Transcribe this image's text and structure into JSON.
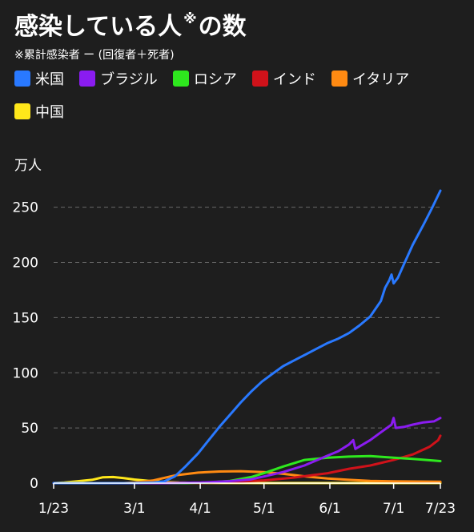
{
  "title": "感染している人",
  "title_mark": "※",
  "title_suffix": "の数",
  "subtitle": "※累計感染者 ー (回復者＋死者)",
  "y_unit": "万人",
  "legend": [
    {
      "name": "米国",
      "color": "#2979ff"
    },
    {
      "name": "ブラジル",
      "color": "#8a1cf0"
    },
    {
      "name": "ロシア",
      "color": "#2ee81e"
    },
    {
      "name": "インド",
      "color": "#d0121a"
    },
    {
      "name": "イタリア",
      "color": "#ff8a12"
    },
    {
      "name": "中国",
      "color": "#ffe71a"
    }
  ],
  "chart_data": {
    "type": "line",
    "ylabel": "万人",
    "ylim": [
      0,
      265
    ],
    "yticks": [
      0,
      50,
      100,
      150,
      200,
      250
    ],
    "xlim": [
      "2020-01-23",
      "2020-07-23"
    ],
    "xticks": [
      {
        "label": "1/23",
        "date": "2020-01-23"
      },
      {
        "label": "3/1",
        "date": "2020-03-01"
      },
      {
        "label": "4/1",
        "date": "2020-04-01"
      },
      {
        "label": "5/1",
        "date": "2020-05-01"
      },
      {
        "label": "6/1",
        "date": "2020-06-01"
      },
      {
        "label": "7/1",
        "date": "2020-07-01"
      },
      {
        "label": "7/23",
        "date": "2020-07-23"
      }
    ],
    "grid": "horizontal-dashed",
    "series": [
      {
        "name": "米国",
        "color": "#2979ff",
        "points": [
          [
            "2020-01-23",
            0
          ],
          [
            "2020-03-01",
            0.1
          ],
          [
            "2020-03-10",
            0.5
          ],
          [
            "2020-03-15",
            1.5
          ],
          [
            "2020-03-20",
            6
          ],
          [
            "2020-03-25",
            15
          ],
          [
            "2020-03-31",
            27
          ],
          [
            "2020-04-05",
            39
          ],
          [
            "2020-04-10",
            51
          ],
          [
            "2020-04-15",
            62
          ],
          [
            "2020-04-20",
            73
          ],
          [
            "2020-04-25",
            83
          ],
          [
            "2020-04-30",
            92
          ],
          [
            "2020-05-05",
            99
          ],
          [
            "2020-05-10",
            106
          ],
          [
            "2020-05-15",
            111
          ],
          [
            "2020-05-20",
            116
          ],
          [
            "2020-05-25",
            121
          ],
          [
            "2020-05-31",
            127
          ],
          [
            "2020-06-05",
            131
          ],
          [
            "2020-06-10",
            136
          ],
          [
            "2020-06-15",
            143
          ],
          [
            "2020-06-20",
            151
          ],
          [
            "2020-06-25",
            165
          ],
          [
            "2020-06-27",
            177
          ],
          [
            "2020-06-29",
            184
          ],
          [
            "2020-06-30",
            189
          ],
          [
            "2020-07-01",
            181
          ],
          [
            "2020-07-03",
            186
          ],
          [
            "2020-07-06",
            199
          ],
          [
            "2020-07-10",
            216
          ],
          [
            "2020-07-15",
            234
          ],
          [
            "2020-07-19",
            249
          ],
          [
            "2020-07-23",
            265
          ]
        ]
      },
      {
        "name": "ブラジル",
        "color": "#8a1cf0",
        "points": [
          [
            "2020-01-23",
            0
          ],
          [
            "2020-03-15",
            0
          ],
          [
            "2020-04-01",
            0.5
          ],
          [
            "2020-04-15",
            1.8
          ],
          [
            "2020-04-25",
            3.5
          ],
          [
            "2020-05-01",
            6
          ],
          [
            "2020-05-10",
            10
          ],
          [
            "2020-05-20",
            16
          ],
          [
            "2020-05-31",
            25
          ],
          [
            "2020-06-05",
            29
          ],
          [
            "2020-06-10",
            35
          ],
          [
            "2020-06-12",
            39
          ],
          [
            "2020-06-13",
            31
          ],
          [
            "2020-06-20",
            39
          ],
          [
            "2020-06-25",
            46
          ],
          [
            "2020-06-30",
            53
          ],
          [
            "2020-07-01",
            59
          ],
          [
            "2020-07-02",
            50
          ],
          [
            "2020-07-06",
            51
          ],
          [
            "2020-07-10",
            53
          ],
          [
            "2020-07-15",
            55
          ],
          [
            "2020-07-20",
            56
          ],
          [
            "2020-07-23",
            59
          ]
        ]
      },
      {
        "name": "ロシア",
        "color": "#2ee81e",
        "points": [
          [
            "2020-01-23",
            0
          ],
          [
            "2020-03-25",
            0
          ],
          [
            "2020-04-05",
            0.5
          ],
          [
            "2020-04-15",
            2
          ],
          [
            "2020-04-25",
            5.5
          ],
          [
            "2020-05-01",
            9
          ],
          [
            "2020-05-10",
            15
          ],
          [
            "2020-05-20",
            21
          ],
          [
            "2020-05-31",
            23
          ],
          [
            "2020-06-10",
            24
          ],
          [
            "2020-06-20",
            24.5
          ],
          [
            "2020-07-01",
            23
          ],
          [
            "2020-07-10",
            22
          ],
          [
            "2020-07-23",
            20
          ]
        ]
      },
      {
        "name": "インド",
        "color": "#d0121a",
        "points": [
          [
            "2020-01-23",
            0
          ],
          [
            "2020-04-01",
            0.1
          ],
          [
            "2020-04-15",
            0.9
          ],
          [
            "2020-05-01",
            2.5
          ],
          [
            "2020-05-15",
            5
          ],
          [
            "2020-05-31",
            9
          ],
          [
            "2020-06-10",
            13
          ],
          [
            "2020-06-20",
            16
          ],
          [
            "2020-07-01",
            21
          ],
          [
            "2020-07-10",
            26
          ],
          [
            "2020-07-18",
            33
          ],
          [
            "2020-07-22",
            39
          ],
          [
            "2020-07-23",
            43
          ]
        ]
      },
      {
        "name": "イタリア",
        "color": "#ff8a12",
        "points": [
          [
            "2020-01-23",
            0
          ],
          [
            "2020-02-25",
            0
          ],
          [
            "2020-03-01",
            0.5
          ],
          [
            "2020-03-10",
            2.5
          ],
          [
            "2020-03-20",
            7
          ],
          [
            "2020-03-31",
            9.5
          ],
          [
            "2020-04-10",
            10.5
          ],
          [
            "2020-04-20",
            10.8
          ],
          [
            "2020-05-01",
            10
          ],
          [
            "2020-05-10",
            8.4
          ],
          [
            "2020-05-20",
            6.2
          ],
          [
            "2020-05-31",
            4.2
          ],
          [
            "2020-06-10",
            3
          ],
          [
            "2020-06-20",
            2
          ],
          [
            "2020-07-01",
            1.6
          ],
          [
            "2020-07-23",
            1.3
          ]
        ]
      },
      {
        "name": "中国",
        "color": "#ffe71a",
        "points": [
          [
            "2020-01-23",
            0
          ],
          [
            "2020-01-28",
            0.5
          ],
          [
            "2020-02-03",
            1.7
          ],
          [
            "2020-02-10",
            3
          ],
          [
            "2020-02-15",
            5.2
          ],
          [
            "2020-02-20",
            5.5
          ],
          [
            "2020-02-25",
            4.5
          ],
          [
            "2020-03-01",
            3.3
          ],
          [
            "2020-03-08",
            2
          ],
          [
            "2020-03-15",
            1
          ],
          [
            "2020-03-22",
            0.5
          ],
          [
            "2020-04-01",
            0.2
          ],
          [
            "2020-05-01",
            0.05
          ],
          [
            "2020-07-23",
            0.05
          ]
        ]
      }
    ]
  }
}
